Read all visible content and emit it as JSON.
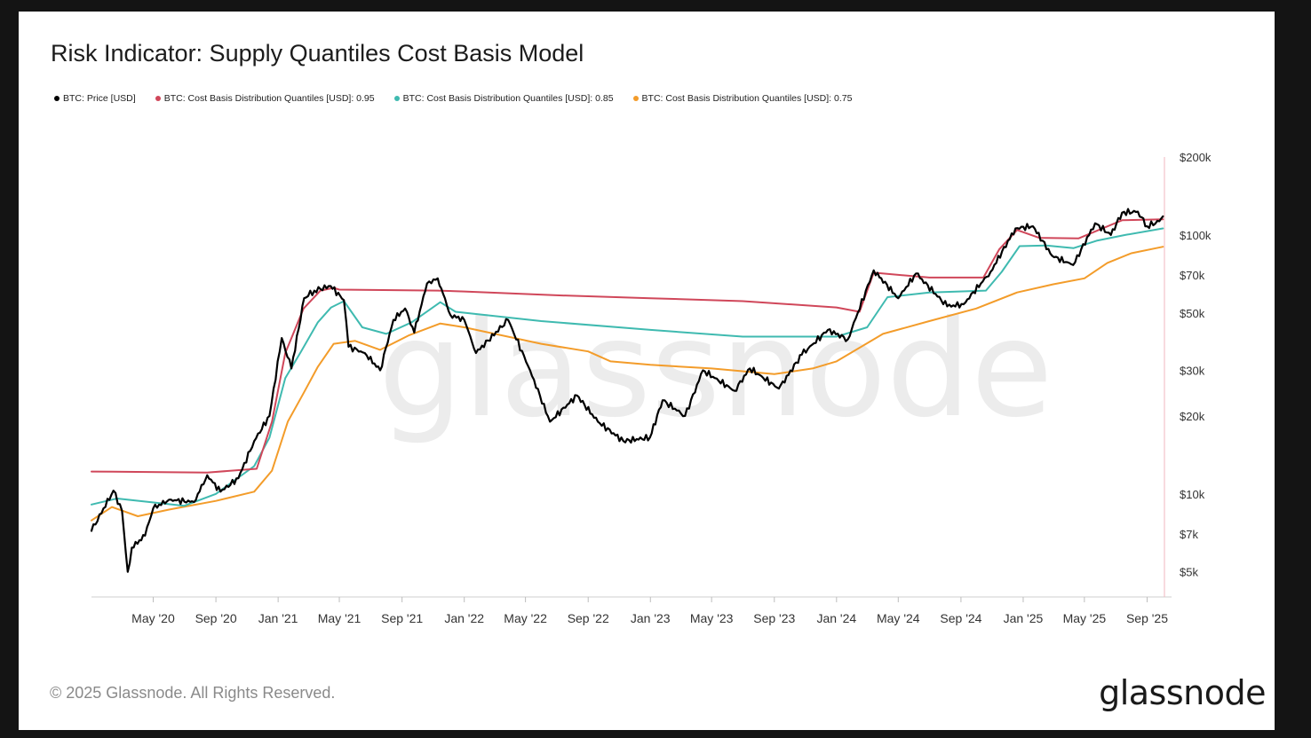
{
  "chart_data": {
    "type": "line",
    "title": "Risk Indicator: Supply Quantiles Cost Basis Model",
    "y_scale": "log",
    "ylim": [
      4000,
      200000
    ],
    "xlim": [
      "2020-01-01",
      "2025-10-05"
    ],
    "grid": false,
    "legend_position": "top-left",
    "x_ticks": [
      {
        "date": "2020-05-01",
        "label": "May '20"
      },
      {
        "date": "2020-09-01",
        "label": "Sep '20"
      },
      {
        "date": "2021-01-01",
        "label": "Jan '21"
      },
      {
        "date": "2021-05-01",
        "label": "May '21"
      },
      {
        "date": "2021-09-01",
        "label": "Sep '21"
      },
      {
        "date": "2022-01-01",
        "label": "Jan '22"
      },
      {
        "date": "2022-05-01",
        "label": "May '22"
      },
      {
        "date": "2022-09-01",
        "label": "Sep '22"
      },
      {
        "date": "2023-01-01",
        "label": "Jan '23"
      },
      {
        "date": "2023-05-01",
        "label": "May '23"
      },
      {
        "date": "2023-09-01",
        "label": "Sep '23"
      },
      {
        "date": "2024-01-01",
        "label": "Jan '24"
      },
      {
        "date": "2024-05-01",
        "label": "May '24"
      },
      {
        "date": "2024-09-01",
        "label": "Sep '24"
      },
      {
        "date": "2025-01-01",
        "label": "Jan '25"
      },
      {
        "date": "2025-05-01",
        "label": "May '25"
      },
      {
        "date": "2025-09-01",
        "label": "Sep '25"
      }
    ],
    "y_ticks": [
      {
        "value": 200000,
        "label": "$200k"
      },
      {
        "value": 100000,
        "label": "$100k"
      },
      {
        "value": 70000,
        "label": "$70k"
      },
      {
        "value": 50000,
        "label": "$50k"
      },
      {
        "value": 30000,
        "label": "$30k"
      },
      {
        "value": 20000,
        "label": "$20k"
      },
      {
        "value": 10000,
        "label": "$10k"
      },
      {
        "value": 7000,
        "label": "$7k"
      },
      {
        "value": 5000,
        "label": "$5k"
      }
    ],
    "series": [
      {
        "name": "BTC: Price [USD]",
        "color": "#000000",
        "points": [
          [
            "2020-01-01",
            7200
          ],
          [
            "2020-02-13",
            10300
          ],
          [
            "2020-03-01",
            8600
          ],
          [
            "2020-03-12",
            5000
          ],
          [
            "2020-03-20",
            6200
          ],
          [
            "2020-04-15",
            6900
          ],
          [
            "2020-05-01",
            8800
          ],
          [
            "2020-06-01",
            9500
          ],
          [
            "2020-07-20",
            9300
          ],
          [
            "2020-08-15",
            11800
          ],
          [
            "2020-09-10",
            10200
          ],
          [
            "2020-10-15",
            11500
          ],
          [
            "2020-11-15",
            16000
          ],
          [
            "2020-12-15",
            20000
          ],
          [
            "2021-01-08",
            40000
          ],
          [
            "2021-01-27",
            30500
          ],
          [
            "2021-02-21",
            57000
          ],
          [
            "2021-03-13",
            61000
          ],
          [
            "2021-04-14",
            63500
          ],
          [
            "2021-05-10",
            56000
          ],
          [
            "2021-05-19",
            37000
          ],
          [
            "2021-06-20",
            35000
          ],
          [
            "2021-07-20",
            30000
          ],
          [
            "2021-08-15",
            47000
          ],
          [
            "2021-09-07",
            52000
          ],
          [
            "2021-09-25",
            42000
          ],
          [
            "2021-10-20",
            65000
          ],
          [
            "2021-11-10",
            68000
          ],
          [
            "2021-12-05",
            49000
          ],
          [
            "2022-01-01",
            47000
          ],
          [
            "2022-01-24",
            35000
          ],
          [
            "2022-03-28",
            47000
          ],
          [
            "2022-05-10",
            30000
          ],
          [
            "2022-06-18",
            19000
          ],
          [
            "2022-08-10",
            24000
          ],
          [
            "2022-09-20",
            19000
          ],
          [
            "2022-11-09",
            16000
          ],
          [
            "2022-12-31",
            16500
          ],
          [
            "2023-01-25",
            23000
          ],
          [
            "2023-03-10",
            20000
          ],
          [
            "2023-04-14",
            30000
          ],
          [
            "2023-06-15",
            25000
          ],
          [
            "2023-07-15",
            30500
          ],
          [
            "2023-09-10",
            25500
          ],
          [
            "2023-10-25",
            34500
          ],
          [
            "2023-12-15",
            43000
          ],
          [
            "2024-01-23",
            39500
          ],
          [
            "2024-03-14",
            73000
          ],
          [
            "2024-05-01",
            57000
          ],
          [
            "2024-06-05",
            71000
          ],
          [
            "2024-08-05",
            53000
          ],
          [
            "2024-09-06",
            54000
          ],
          [
            "2024-10-29",
            72000
          ],
          [
            "2024-12-17",
            106000
          ],
          [
            "2025-01-20",
            108000
          ],
          [
            "2025-02-27",
            83000
          ],
          [
            "2025-04-09",
            76500
          ],
          [
            "2025-05-22",
            111000
          ],
          [
            "2025-06-22",
            100000
          ],
          [
            "2025-07-14",
            122000
          ],
          [
            "2025-08-14",
            123000
          ],
          [
            "2025-09-01",
            108000
          ],
          [
            "2025-09-25",
            113000
          ],
          [
            "2025-10-02",
            118000
          ]
        ]
      },
      {
        "name": "BTC: Cost Basis Distribution Quantiles [USD]: 0.95",
        "color": "#d0475a",
        "points": [
          [
            "2020-01-01",
            12200
          ],
          [
            "2020-08-15",
            12100
          ],
          [
            "2020-11-20",
            12500
          ],
          [
            "2020-12-20",
            19000
          ],
          [
            "2021-01-15",
            35000
          ],
          [
            "2021-02-20",
            52000
          ],
          [
            "2021-03-25",
            61000
          ],
          [
            "2021-04-20",
            62500
          ],
          [
            "2021-05-01",
            61500
          ],
          [
            "2021-11-10",
            61000
          ],
          [
            "2022-01-01",
            60500
          ],
          [
            "2022-07-01",
            58500
          ],
          [
            "2023-01-01",
            57000
          ],
          [
            "2023-07-01",
            55500
          ],
          [
            "2024-01-01",
            52500
          ],
          [
            "2024-02-15",
            50500
          ],
          [
            "2024-03-14",
            71500
          ],
          [
            "2024-07-01",
            68500
          ],
          [
            "2024-10-15",
            68500
          ],
          [
            "2024-11-15",
            88000
          ],
          [
            "2024-12-20",
            104500
          ],
          [
            "2025-02-01",
            97500
          ],
          [
            "2025-04-20",
            97000
          ],
          [
            "2025-07-14",
            114000
          ],
          [
            "2025-10-02",
            115000
          ]
        ]
      },
      {
        "name": "BTC: Cost Basis Distribution Quantiles [USD]: 0.85",
        "color": "#3fbab0",
        "points": [
          [
            "2020-01-01",
            9100
          ],
          [
            "2020-02-20",
            9600
          ],
          [
            "2020-07-01",
            9000
          ],
          [
            "2020-09-01",
            10000
          ],
          [
            "2020-11-15",
            12800
          ],
          [
            "2020-12-15",
            16500
          ],
          [
            "2021-01-15",
            28000
          ],
          [
            "2021-02-15",
            35500
          ],
          [
            "2021-03-20",
            46000
          ],
          [
            "2021-04-15",
            52500
          ],
          [
            "2021-05-10",
            55500
          ],
          [
            "2021-06-15",
            44000
          ],
          [
            "2021-08-01",
            41500
          ],
          [
            "2021-09-20",
            46000
          ],
          [
            "2021-11-15",
            55000
          ],
          [
            "2021-12-15",
            50500
          ],
          [
            "2022-06-01",
            46500
          ],
          [
            "2023-01-01",
            43000
          ],
          [
            "2023-07-01",
            40500
          ],
          [
            "2024-01-01",
            40500
          ],
          [
            "2024-03-01",
            44000
          ],
          [
            "2024-04-10",
            57500
          ],
          [
            "2024-07-01",
            60000
          ],
          [
            "2024-10-20",
            61000
          ],
          [
            "2024-11-20",
            72000
          ],
          [
            "2024-12-25",
            90500
          ],
          [
            "2025-02-15",
            91000
          ],
          [
            "2025-04-10",
            89000
          ],
          [
            "2025-05-25",
            95000
          ],
          [
            "2025-07-20",
            100000
          ],
          [
            "2025-10-02",
            106000
          ]
        ]
      },
      {
        "name": "BTC: Cost Basis Distribution Quantiles [USD]: 0.75",
        "color": "#f39c2a",
        "points": [
          [
            "2020-01-01",
            7900
          ],
          [
            "2020-02-10",
            8900
          ],
          [
            "2020-04-01",
            8200
          ],
          [
            "2020-06-01",
            8700
          ],
          [
            "2020-09-01",
            9400
          ],
          [
            "2020-11-15",
            10200
          ],
          [
            "2020-12-20",
            12300
          ],
          [
            "2021-01-20",
            19000
          ],
          [
            "2021-02-20",
            24500
          ],
          [
            "2021-03-20",
            31000
          ],
          [
            "2021-04-20",
            38000
          ],
          [
            "2021-06-01",
            39000
          ],
          [
            "2021-07-20",
            36000
          ],
          [
            "2021-09-15",
            41000
          ],
          [
            "2021-11-15",
            45500
          ],
          [
            "2022-01-01",
            44000
          ],
          [
            "2022-06-01",
            38000
          ],
          [
            "2022-09-01",
            35500
          ],
          [
            "2022-10-15",
            32500
          ],
          [
            "2023-01-01",
            31500
          ],
          [
            "2023-05-01",
            30500
          ],
          [
            "2023-09-01",
            29000
          ],
          [
            "2023-11-15",
            30500
          ],
          [
            "2024-01-01",
            32500
          ],
          [
            "2024-04-01",
            41500
          ],
          [
            "2024-07-01",
            46500
          ],
          [
            "2024-10-01",
            52000
          ],
          [
            "2024-12-20",
            60000
          ],
          [
            "2025-03-01",
            64500
          ],
          [
            "2025-05-01",
            68000
          ],
          [
            "2025-06-15",
            78000
          ],
          [
            "2025-08-01",
            85000
          ],
          [
            "2025-10-02",
            90000
          ]
        ]
      }
    ],
    "watermark": "glassnode"
  },
  "footer": {
    "copyright": "© 2025 Glassnode. All Rights Reserved.",
    "logo": "glassnode"
  }
}
